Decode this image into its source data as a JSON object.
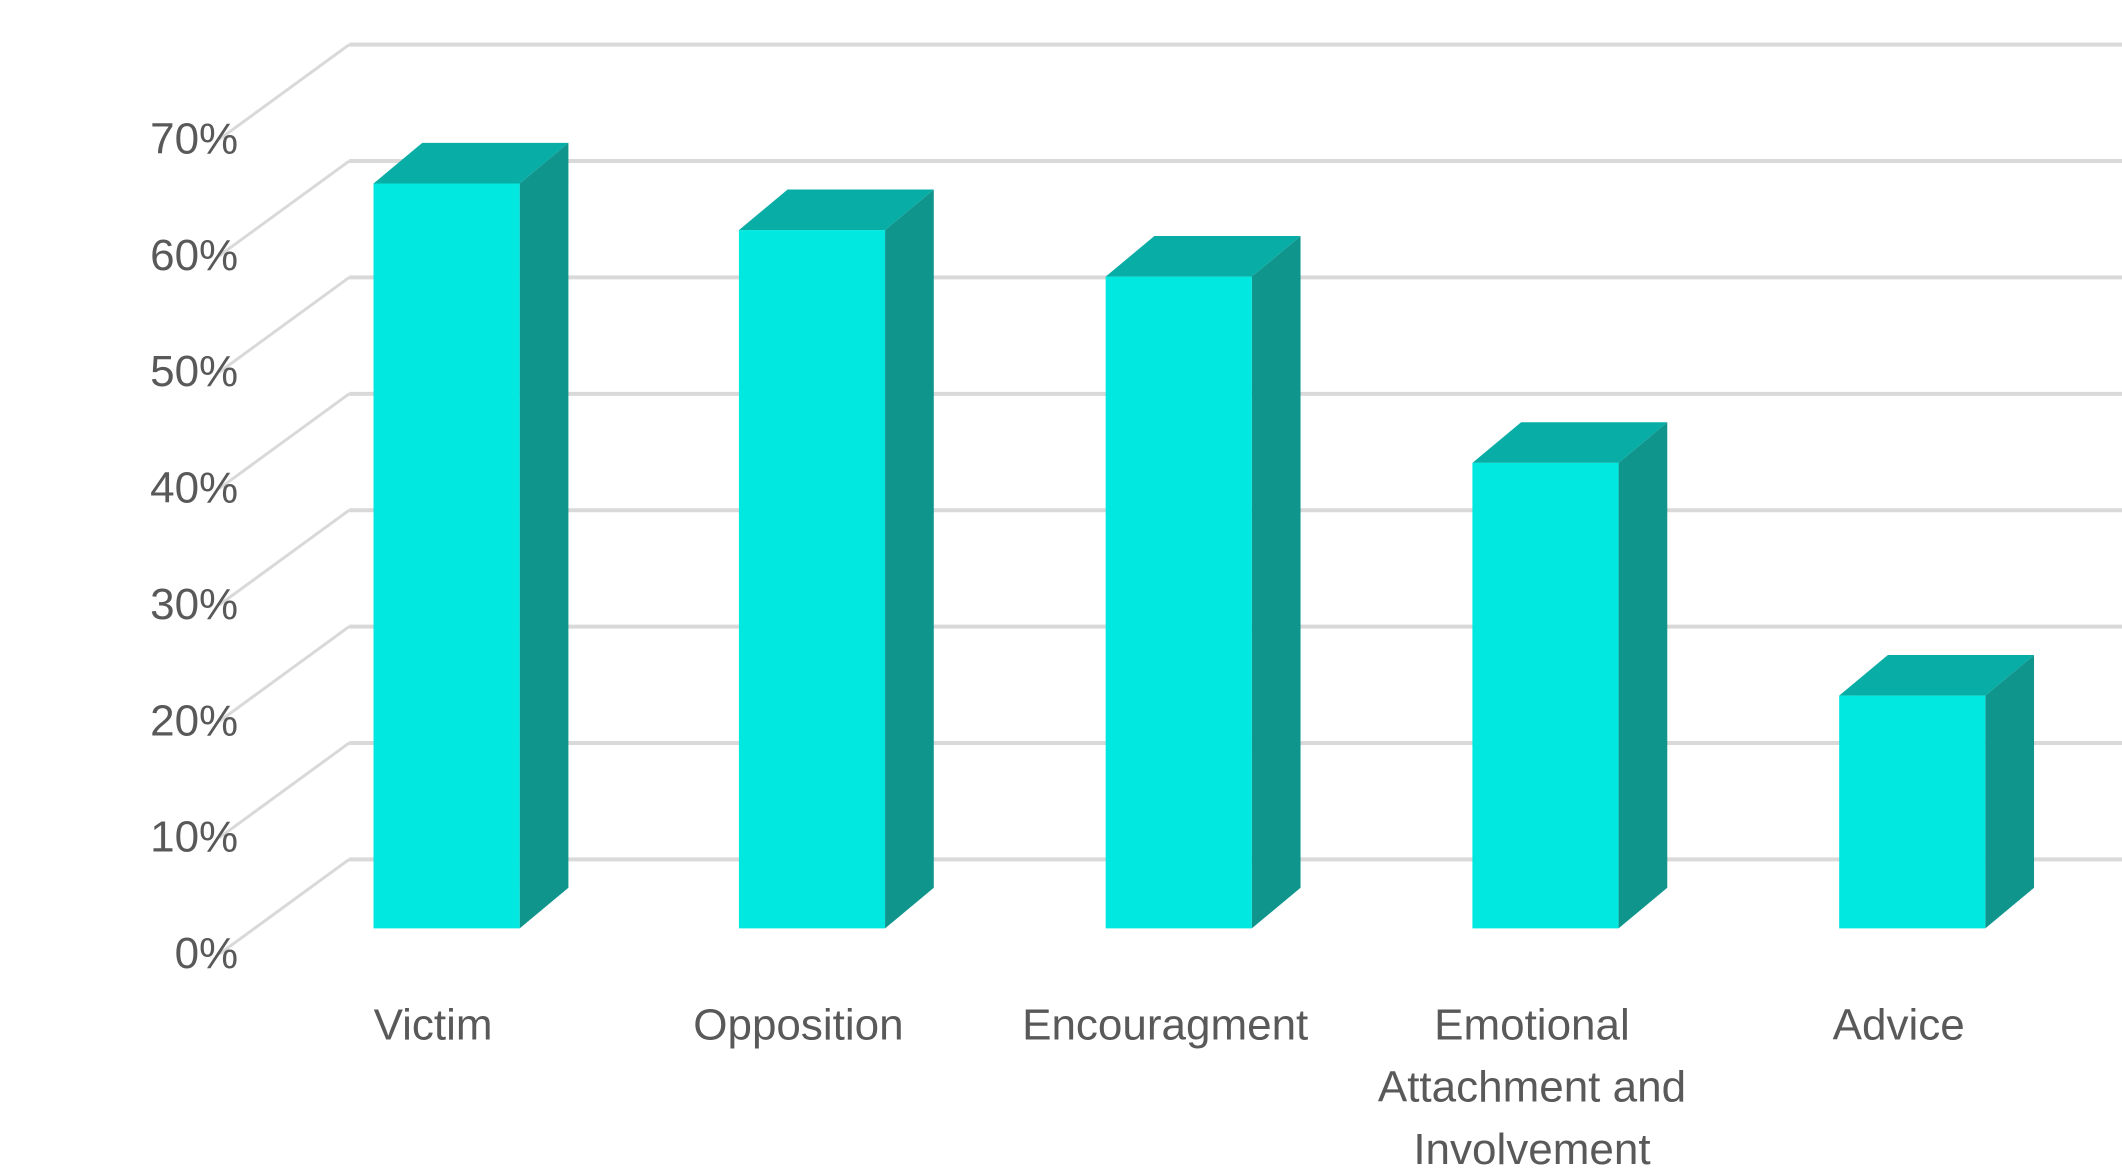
{
  "chart_data": {
    "type": "bar",
    "style": "3d-column",
    "categories": [
      [
        "Victim"
      ],
      [
        "Opposition"
      ],
      [
        "Encouragment"
      ],
      [
        "Emotional",
        "Attachment and",
        "Involvement"
      ],
      [
        "Advice"
      ]
    ],
    "values": [
      64,
      60,
      56,
      40,
      20
    ],
    "unit": "%",
    "ylim": [
      0,
      70
    ],
    "yticks": [
      "0%",
      "10%",
      "20%",
      "30%",
      "40%",
      "50%",
      "60%",
      "70%"
    ],
    "grid": true,
    "legend": "none",
    "title": "",
    "xlabel": "",
    "ylabel": "",
    "colors": {
      "bar_front": "#00E8DF",
      "bar_side": "#10958D",
      "bar_top": "#08ADA5",
      "gridline": "#D9D9D9"
    }
  }
}
